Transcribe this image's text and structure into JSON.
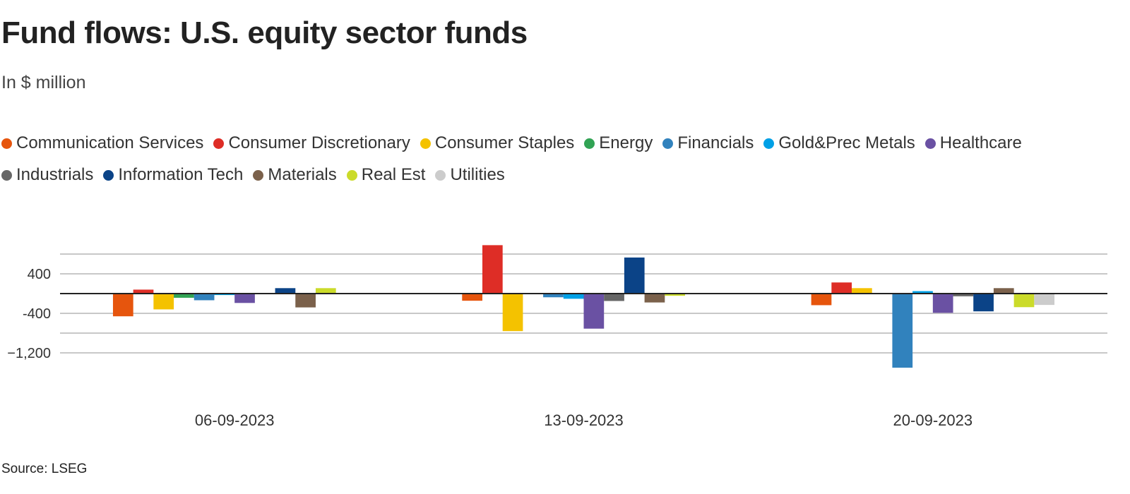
{
  "chart_data": {
    "type": "bar",
    "title": "Fund flows: U.S. equity sector funds",
    "subtitle": "In $ million",
    "source": "Source: LSEG",
    "categories": [
      "06-09-2023",
      "13-09-2023",
      "20-09-2023"
    ],
    "yticks": [
      400,
      -400,
      -1200
    ],
    "ytick_labels": [
      "400",
      "-400",
      "−1,200"
    ],
    "ylim": [
      -1700,
      1100
    ],
    "grid": true,
    "legend_position": "top",
    "series": [
      {
        "name": "Communication Services",
        "color": "#e6550d",
        "values": [
          -460,
          -145,
          -235
        ]
      },
      {
        "name": "Consumer Discretionary",
        "color": "#de2d26",
        "values": [
          80,
          980,
          225
        ]
      },
      {
        "name": "Consumer Staples",
        "color": "#f4c200",
        "values": [
          -320,
          -760,
          110
        ]
      },
      {
        "name": "Energy",
        "color": "#31a354",
        "values": [
          -85,
          0,
          0
        ]
      },
      {
        "name": "Financials",
        "color": "#3182bd",
        "values": [
          -135,
          -75,
          -1500
        ]
      },
      {
        "name": "Gold&Prec Metals",
        "color": "#00a0e6",
        "values": [
          -30,
          -105,
          50
        ]
      },
      {
        "name": "Healthcare",
        "color": "#6a51a3",
        "values": [
          -190,
          -710,
          -390
        ]
      },
      {
        "name": "Industrials",
        "color": "#666666",
        "values": [
          0,
          -150,
          -55
        ]
      },
      {
        "name": "Information Tech",
        "color": "#0b4387",
        "values": [
          110,
          730,
          -360
        ]
      },
      {
        "name": "Materials",
        "color": "#7b614b",
        "values": [
          -280,
          -180,
          110
        ]
      },
      {
        "name": "Real Est",
        "color": "#cbdb2a",
        "values": [
          110,
          -45,
          -275
        ]
      },
      {
        "name": "Utilities",
        "color": "#cccccc",
        "values": [
          0,
          0,
          -230
        ]
      }
    ]
  }
}
